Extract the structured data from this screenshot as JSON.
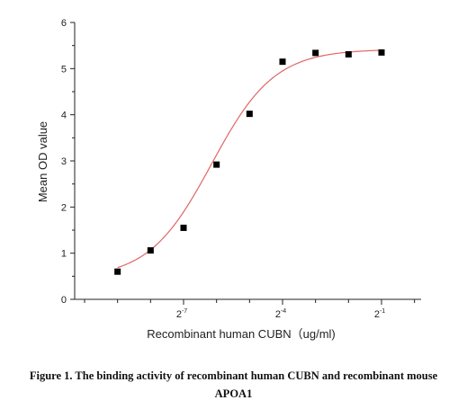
{
  "chart_data": {
    "type": "scatter",
    "ylabel": "Mean OD value",
    "xlabel": "Recombinant human CUBN（ug/ml)",
    "y_ticks": [
      "0",
      "1",
      "2",
      "3",
      "4",
      "5",
      "6"
    ],
    "x_ticks": [
      {
        "base": "2",
        "exp": "-7",
        "at": -7
      },
      {
        "base": "2",
        "exp": "-4",
        "at": -4
      },
      {
        "base": "2",
        "exp": "-1",
        "at": -1
      }
    ],
    "x_scale": "log2",
    "ylim": [
      0,
      6
    ],
    "x_log2_range": [
      -10.3,
      0.2
    ],
    "series": [
      {
        "points": [
          {
            "x_log2": -9.0,
            "y": 0.6
          },
          {
            "x_log2": -8.0,
            "y": 1.06
          },
          {
            "x_log2": -7.0,
            "y": 1.55
          },
          {
            "x_log2": -6.0,
            "y": 2.92
          },
          {
            "x_log2": -5.0,
            "y": 4.02
          },
          {
            "x_log2": -4.0,
            "y": 5.15
          },
          {
            "x_log2": -3.0,
            "y": 5.34
          },
          {
            "x_log2": -2.0,
            "y": 5.31
          },
          {
            "x_log2": -1.0,
            "y": 5.35
          }
        ],
        "marker_color": "#000000"
      }
    ],
    "fit": {
      "model": "logistic",
      "bottom": 0.45,
      "top": 5.42,
      "midpoint_log2": -6.15,
      "slope": 1.05,
      "color": "#e06666"
    },
    "grid": false
  },
  "caption": {
    "line1": "Figure 1. The binding activity of recombinant human CUBN and recombinant mouse",
    "line2": "APOA1"
  }
}
